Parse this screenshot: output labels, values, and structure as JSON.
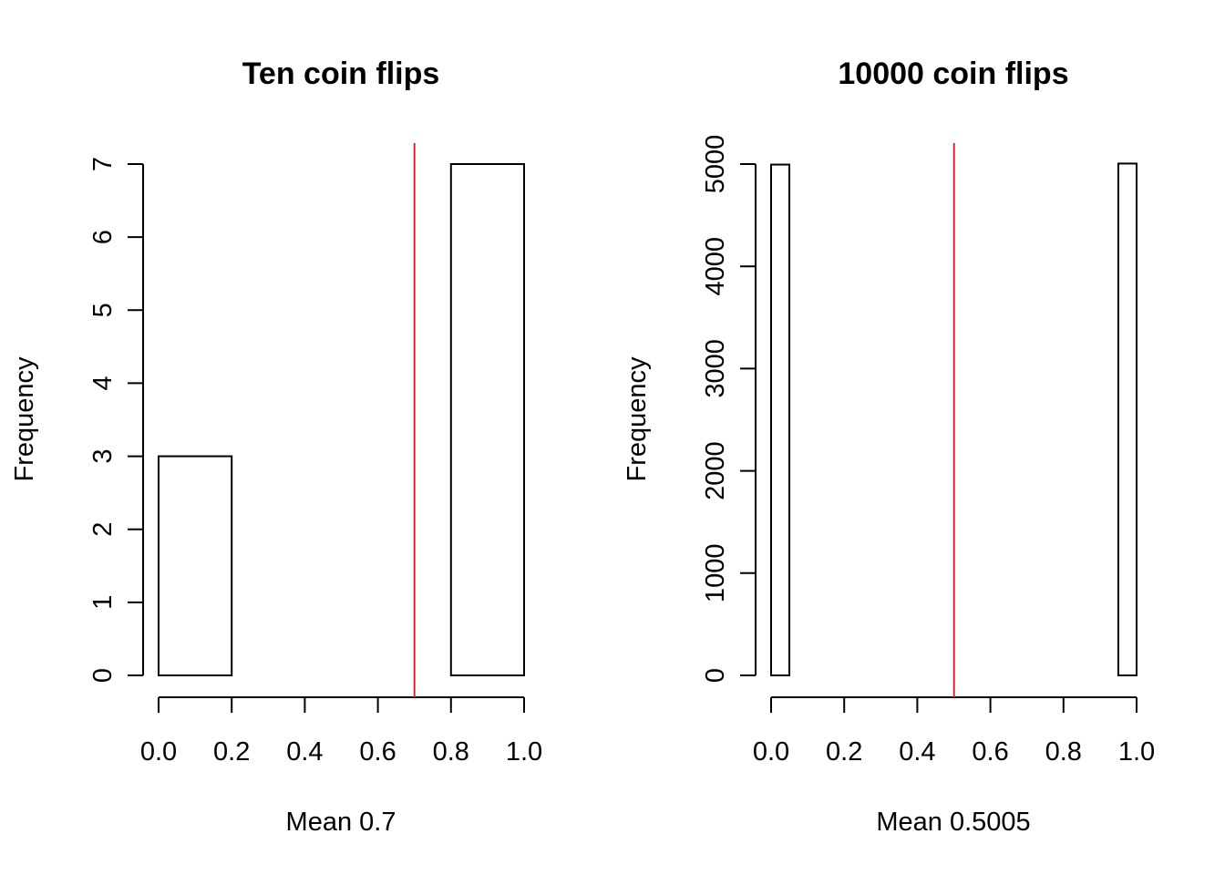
{
  "chart_data": [
    {
      "type": "bar",
      "title": "Ten coin flips",
      "xlabel": "Mean 0.7",
      "ylabel": "Frequency",
      "bin_edges": [
        0.0,
        0.2,
        0.4,
        0.6,
        0.8,
        1.0
      ],
      "values": [
        3,
        0,
        0,
        0,
        7
      ],
      "xlim": [
        0.0,
        1.0
      ],
      "ylim": [
        0,
        7
      ],
      "x_ticks": [
        "0.0",
        "0.2",
        "0.4",
        "0.6",
        "0.8",
        "1.0"
      ],
      "y_ticks": [
        "0",
        "1",
        "2",
        "3",
        "4",
        "5",
        "6",
        "7"
      ],
      "mean_line": 0.7,
      "mean_line_color": "#d62728",
      "grid": false
    },
    {
      "type": "bar",
      "title": "10000 coin flips",
      "xlabel": "Mean 0.5005",
      "ylabel": "Frequency",
      "bin_edges": [
        0.0,
        0.05,
        0.1,
        0.15,
        0.2,
        0.25,
        0.3,
        0.35,
        0.4,
        0.45,
        0.5,
        0.55,
        0.6,
        0.65,
        0.7,
        0.75,
        0.8,
        0.85,
        0.9,
        0.95,
        1.0
      ],
      "values": [
        4995,
        0,
        0,
        0,
        0,
        0,
        0,
        0,
        0,
        0,
        0,
        0,
        0,
        0,
        0,
        0,
        0,
        0,
        0,
        5005
      ],
      "xlim": [
        0.0,
        1.0
      ],
      "ylim": [
        0,
        5000
      ],
      "x_ticks": [
        "0.0",
        "0.2",
        "0.4",
        "0.6",
        "0.8",
        "1.0"
      ],
      "y_ticks": [
        "0",
        "1000",
        "2000",
        "3000",
        "4000",
        "5000"
      ],
      "mean_line": 0.5005,
      "mean_line_color": "#d62728",
      "grid": false
    }
  ]
}
